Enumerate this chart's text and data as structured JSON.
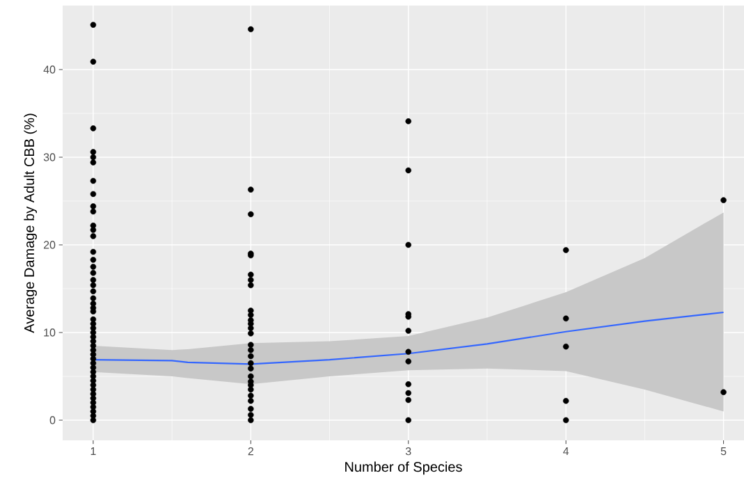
{
  "chart_data": {
    "type": "scatter",
    "xlabel": "Number of Species",
    "ylabel": "Average Damage by Adult CBB (%)",
    "xlim": [
      0.806,
      5.13
    ],
    "ylim": [
      -2.3,
      47.3
    ],
    "xticks": [
      1,
      2,
      3,
      4,
      5
    ],
    "yticks": [
      0,
      10,
      20,
      30,
      40
    ],
    "grid": true,
    "series": [
      {
        "color": "#000000",
        "marker": "circle",
        "x": [
          1,
          1,
          1,
          1,
          1,
          1,
          1,
          1,
          1,
          1,
          1,
          1,
          1,
          1,
          1,
          1,
          1,
          1,
          1,
          1,
          1,
          1,
          1,
          1,
          1,
          1,
          1,
          1,
          1,
          1,
          1,
          1,
          1,
          1,
          1,
          1,
          1,
          1,
          1,
          1,
          1,
          1,
          1,
          1,
          1,
          1,
          1,
          1,
          2,
          2,
          2,
          2,
          2,
          2,
          2,
          2,
          2,
          2,
          2,
          2,
          2,
          2,
          2,
          2,
          2,
          2,
          2,
          2,
          2,
          2,
          2,
          2,
          2,
          2,
          2,
          2,
          3,
          3,
          3,
          3,
          3,
          3,
          3,
          3,
          3,
          3,
          3,
          3,
          4,
          4,
          4,
          4,
          4,
          5,
          5
        ],
        "values": [
          45.1,
          40.9,
          33.3,
          30.6,
          30.0,
          29.4,
          27.3,
          25.8,
          24.4,
          23.8,
          22.2,
          21.7,
          21.0,
          19.2,
          18.3,
          17.5,
          16.8,
          16.0,
          15.4,
          14.7,
          13.9,
          13.3,
          12.8,
          12.4,
          11.5,
          11.0,
          10.5,
          10.0,
          9.5,
          9.0,
          8.5,
          8.0,
          7.5,
          7.0,
          6.5,
          6.0,
          5.5,
          5.0,
          4.5,
          4.0,
          3.5,
          3.0,
          2.5,
          2.0,
          1.5,
          1.0,
          0.5,
          0,
          44.6,
          26.3,
          23.5,
          19.0,
          18.8,
          16.6,
          16.0,
          15.4,
          12.5,
          12.0,
          11.4,
          11.0,
          10.5,
          9.9,
          8.6,
          8.0,
          7.3,
          6.5,
          5.9,
          5.0,
          4.4,
          4.0,
          3.5,
          2.8,
          2.2,
          1.3,
          0.6,
          0,
          34.1,
          28.5,
          20.0,
          12.1,
          11.8,
          10.2,
          7.8,
          6.7,
          4.1,
          3.1,
          2.3,
          0,
          19.4,
          11.6,
          8.4,
          2.2,
          0,
          25.1,
          3.2
        ]
      },
      {
        "type": "line",
        "color": "#3366ff",
        "line_style": "solid",
        "x": [
          1,
          1.5,
          1.6,
          2,
          2.5,
          3,
          3.5,
          4,
          4.5,
          5
        ],
        "values": [
          6.9,
          6.8,
          6.6,
          6.4,
          6.9,
          7.6,
          8.7,
          10.1,
          11.3,
          12.3
        ],
        "lower": [
          5.5,
          5.0,
          4.8,
          4.1,
          5.0,
          5.7,
          5.9,
          5.6,
          3.5,
          1.0
        ],
        "upper": [
          8.5,
          8.0,
          8.1,
          8.8,
          9.0,
          9.6,
          11.7,
          14.6,
          18.5,
          23.7
        ]
      }
    ]
  }
}
